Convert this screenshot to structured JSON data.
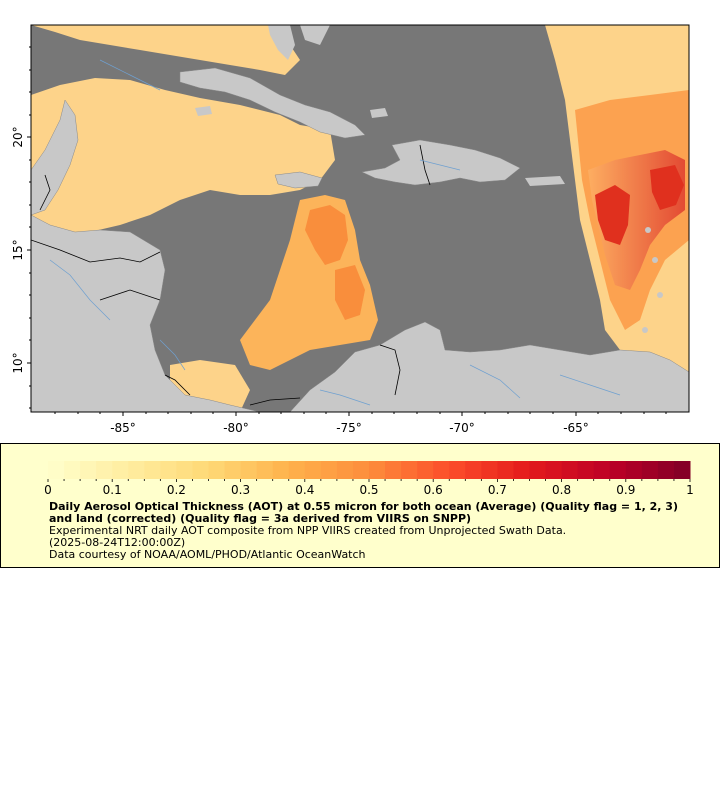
{
  "map": {
    "lat_labels": [
      "20°",
      "15°",
      "10°"
    ],
    "lon_labels": [
      "-85°",
      "-80°",
      "-75°",
      "-70°",
      "-65°"
    ],
    "land_color": "#c8c8c8",
    "nodata_color": "#777777",
    "border_color": "#000000",
    "river_color": "#6fa0d0"
  },
  "legend": {
    "colorbar_ticks": [
      "0",
      "0.1",
      "0.2",
      "0.3",
      "0.4",
      "0.5",
      "0.6",
      "0.7",
      "0.8",
      "0.9",
      "1"
    ],
    "colorbar_range": [
      0,
      1
    ],
    "colorbar_colors": [
      "#ffffcc",
      "#ffeda0",
      "#fed976",
      "#feb24c",
      "#fd8d3c",
      "#fc4e2a",
      "#e31a1c",
      "#bd0026",
      "#800026"
    ],
    "title": "Daily Aerosol Optical Thickness (AOT) at 0.55 micron for both ocean (Average) (Quality flag = 1, 2, 3) and land (corrected) (Quality flag = 3a derived from VIIRS on SNPP)",
    "line1": "Experimental NRT daily AOT composite from NPP VIIRS created from Unprojected Swath Data.",
    "line2": "(2025-08-24T12:00:00Z)",
    "line3": "Data courtesy of NOAA/AOML/PHOD/Atlantic OceanWatch"
  }
}
